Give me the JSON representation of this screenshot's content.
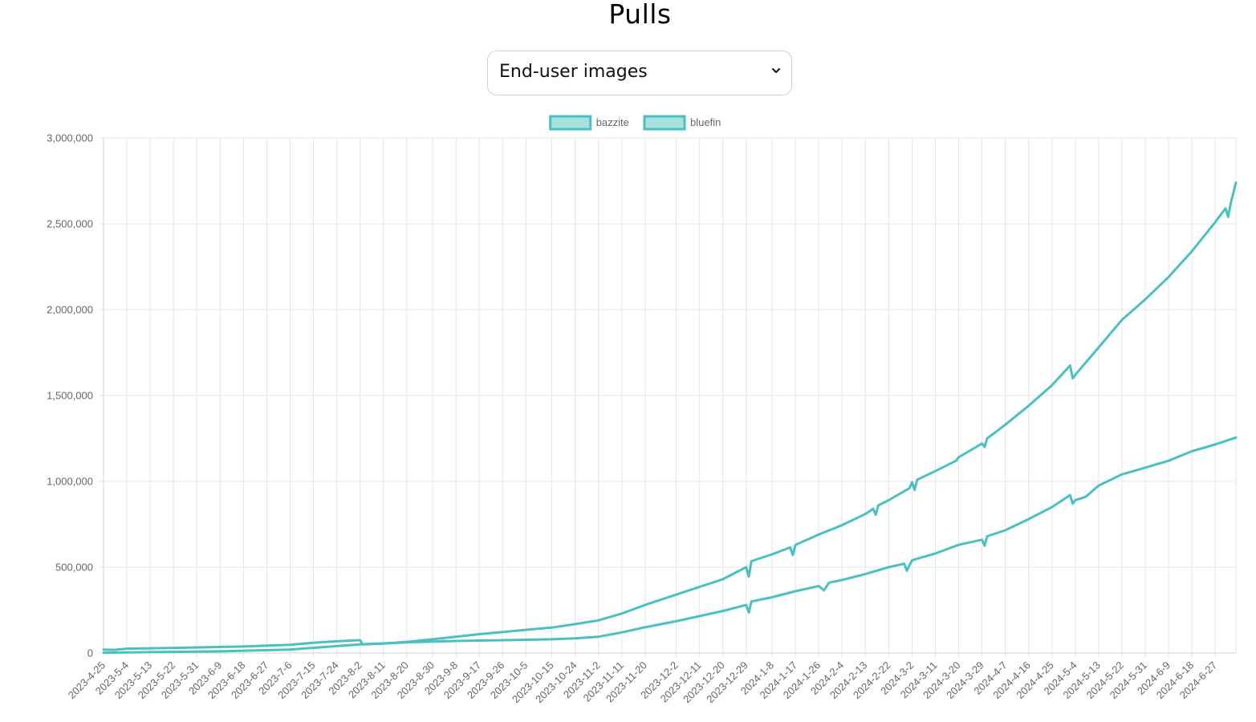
{
  "page": {
    "title": "Pulls",
    "selector": {
      "selected": "End-user images",
      "icon": "chevron-down-icon"
    }
  },
  "colors": {
    "series_stroke": "#4bc0c0",
    "series_fill": "#a8dfdf",
    "grid": "#e5e5e5",
    "tick_text": "#666666"
  },
  "chart_data": {
    "type": "line",
    "title": "",
    "xlabel": "",
    "ylabel": "",
    "legend_position": "top",
    "grid": true,
    "ylim": [
      0,
      3000000
    ],
    "y_ticks": [
      "3,000,000",
      "2,500,000",
      "2,000,000",
      "1,500,000",
      "1,000,000",
      "500,000",
      "0"
    ],
    "x_start": "2023-4-25",
    "x_end": "2024-7-5",
    "x_ticks": [
      "2023-4-25",
      "2023-5-4",
      "2023-5-13",
      "2023-5-22",
      "2023-5-31",
      "2023-6-9",
      "2023-6-18",
      "2023-6-27",
      "2023-7-6",
      "2023-7-15",
      "2023-7-24",
      "2023-8-2",
      "2023-8-11",
      "2023-8-20",
      "2023-8-30",
      "2023-9-8",
      "2023-9-17",
      "2023-9-26",
      "2023-10-5",
      "2023-10-15",
      "2023-10-24",
      "2023-11-2",
      "2023-11-11",
      "2023-11-20",
      "2023-12-2",
      "2023-12-11",
      "2023-12-20",
      "2023-12-29",
      "2024-1-8",
      "2024-1-17",
      "2024-1-26",
      "2024-2-4",
      "2024-2-13",
      "2024-2-22",
      "2024-3-2",
      "2024-3-11",
      "2024-3-20",
      "2024-3-29",
      "2024-4-7",
      "2024-4-16",
      "2024-4-25",
      "2024-5-4",
      "2024-5-13",
      "2024-5-22",
      "2024-5-31",
      "2024-6-9",
      "2024-6-18",
      "2024-6-27"
    ],
    "series": [
      {
        "name": "bazzite",
        "points": [
          [
            "2023-4-25",
            2000
          ],
          [
            "2023-5-13",
            5000
          ],
          [
            "2023-6-9",
            10000
          ],
          [
            "2023-7-6",
            20000
          ],
          [
            "2023-7-24",
            40000
          ],
          [
            "2023-8-2",
            50000
          ],
          [
            "2023-8-20",
            62000
          ],
          [
            "2023-9-8",
            70000
          ],
          [
            "2023-9-26",
            75000
          ],
          [
            "2023-10-15",
            80000
          ],
          [
            "2023-10-24",
            85000
          ],
          [
            "2023-11-2",
            95000
          ],
          [
            "2023-11-11",
            120000
          ],
          [
            "2023-11-20",
            150000
          ],
          [
            "2023-12-2",
            185000
          ],
          [
            "2023-12-11",
            215000
          ],
          [
            "2023-12-20",
            245000
          ],
          [
            "2023-12-29",
            280000
          ],
          [
            "2023-12-30",
            235000
          ],
          [
            "2023-12-31",
            300000
          ],
          [
            "2024-1-8",
            325000
          ],
          [
            "2024-1-17",
            360000
          ],
          [
            "2024-1-26",
            390000
          ],
          [
            "2024-1-28",
            365000
          ],
          [
            "2024-1-30",
            410000
          ],
          [
            "2024-2-4",
            425000
          ],
          [
            "2024-2-13",
            460000
          ],
          [
            "2024-2-22",
            500000
          ],
          [
            "2024-2-28",
            520000
          ],
          [
            "2024-2-29",
            480000
          ],
          [
            "2024-3-2",
            540000
          ],
          [
            "2024-3-11",
            580000
          ],
          [
            "2024-3-20",
            630000
          ],
          [
            "2024-3-29",
            660000
          ],
          [
            "2024-3-30",
            625000
          ],
          [
            "2024-3-31",
            680000
          ],
          [
            "2024-4-7",
            715000
          ],
          [
            "2024-4-16",
            780000
          ],
          [
            "2024-4-25",
            850000
          ],
          [
            "2024-5-2",
            920000
          ],
          [
            "2024-5-3",
            870000
          ],
          [
            "2024-5-4",
            890000
          ],
          [
            "2024-5-8",
            910000
          ],
          [
            "2024-5-13",
            975000
          ],
          [
            "2024-5-22",
            1040000
          ],
          [
            "2024-5-31",
            1080000
          ],
          [
            "2024-6-9",
            1120000
          ],
          [
            "2024-6-18",
            1175000
          ],
          [
            "2024-6-27",
            1215000
          ],
          [
            "2024-7-5",
            1255000
          ]
        ]
      },
      {
        "name": "bluefin",
        "points": [
          [
            "2023-4-25",
            20000
          ],
          [
            "2023-4-29",
            18000
          ],
          [
            "2023-5-4",
            25000
          ],
          [
            "2023-5-22",
            30000
          ],
          [
            "2023-6-18",
            38000
          ],
          [
            "2023-7-6",
            48000
          ],
          [
            "2023-7-15",
            60000
          ],
          [
            "2023-7-24",
            68000
          ],
          [
            "2023-8-2",
            75000
          ],
          [
            "2023-8-3",
            50000
          ],
          [
            "2023-8-11",
            55000
          ],
          [
            "2023-8-20",
            65000
          ],
          [
            "2023-8-30",
            80000
          ],
          [
            "2023-9-8",
            95000
          ],
          [
            "2023-9-17",
            110000
          ],
          [
            "2023-9-26",
            122000
          ],
          [
            "2023-10-5",
            135000
          ],
          [
            "2023-10-15",
            148000
          ],
          [
            "2023-10-24",
            168000
          ],
          [
            "2023-11-2",
            190000
          ],
          [
            "2023-11-11",
            230000
          ],
          [
            "2023-11-20",
            280000
          ],
          [
            "2023-12-2",
            340000
          ],
          [
            "2023-12-11",
            385000
          ],
          [
            "2023-12-20",
            430000
          ],
          [
            "2023-12-29",
            500000
          ],
          [
            "2023-12-30",
            445000
          ],
          [
            "2023-12-31",
            535000
          ],
          [
            "2024-1-8",
            575000
          ],
          [
            "2024-1-15",
            615000
          ],
          [
            "2024-1-16",
            570000
          ],
          [
            "2024-1-17",
            630000
          ],
          [
            "2024-1-26",
            690000
          ],
          [
            "2024-2-4",
            745000
          ],
          [
            "2024-2-13",
            810000
          ],
          [
            "2024-2-16",
            840000
          ],
          [
            "2024-2-17",
            805000
          ],
          [
            "2024-2-18",
            860000
          ],
          [
            "2024-2-22",
            890000
          ],
          [
            "2024-3-1",
            960000
          ],
          [
            "2024-3-2",
            995000
          ],
          [
            "2024-3-3",
            950000
          ],
          [
            "2024-3-4",
            1010000
          ],
          [
            "2024-3-11",
            1060000
          ],
          [
            "2024-3-19",
            1120000
          ],
          [
            "2024-3-20",
            1140000
          ],
          [
            "2024-3-29",
            1220000
          ],
          [
            "2024-3-30",
            1200000
          ],
          [
            "2024-3-31",
            1250000
          ],
          [
            "2024-4-7",
            1330000
          ],
          [
            "2024-4-16",
            1440000
          ],
          [
            "2024-4-25",
            1560000
          ],
          [
            "2024-5-2",
            1675000
          ],
          [
            "2024-5-3",
            1600000
          ],
          [
            "2024-5-4",
            1620000
          ],
          [
            "2024-5-13",
            1780000
          ],
          [
            "2024-5-22",
            1940000
          ],
          [
            "2024-5-31",
            2060000
          ],
          [
            "2024-6-9",
            2190000
          ],
          [
            "2024-6-18",
            2340000
          ],
          [
            "2024-6-27",
            2510000
          ],
          [
            "2024-7-1",
            2590000
          ],
          [
            "2024-7-2",
            2540000
          ],
          [
            "2024-7-3",
            2620000
          ],
          [
            "2024-7-5",
            2740000
          ]
        ]
      }
    ]
  }
}
